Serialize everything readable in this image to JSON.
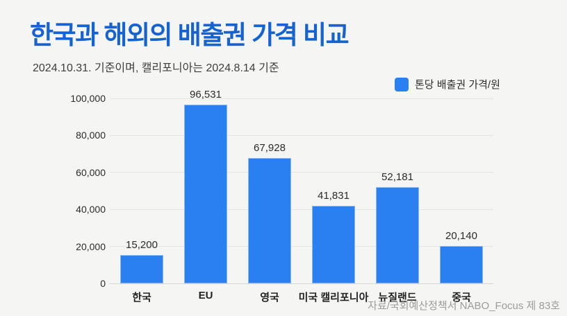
{
  "header": {
    "title": "한국과 해외의 배출권 가격 비교",
    "subtitle": "2024.10.31. 기준이며, 캘리포니아는 2024.8.14 기준"
  },
  "legend": {
    "label": "톤당 배출권 가격/원",
    "swatch_color": "#2a80f0",
    "position": "top-right"
  },
  "chart_data": {
    "type": "bar",
    "title": "한국과 해외의 배출권 가격 비교",
    "series_name": "톤당 배출권 가격/원",
    "categories": [
      "한국",
      "EU",
      "영국",
      "미국 캘리포니아",
      "뉴질랜드",
      "중국"
    ],
    "values": [
      15200,
      96531,
      67928,
      41831,
      52181,
      20140
    ],
    "value_labels": [
      "15,200",
      "96,531",
      "67,928",
      "41,831",
      "52,181",
      "20,140"
    ],
    "xlabel": "",
    "ylabel": "톤당 배출권 가격/원",
    "ylim": [
      0,
      100000
    ],
    "yticks": [
      0,
      20000,
      40000,
      60000,
      80000,
      100000
    ],
    "ytick_labels": [
      "0",
      "20,000",
      "40,000",
      "60,000",
      "80,000",
      "100,000"
    ],
    "grid": "horizontal",
    "legend_position": "top-right",
    "bar_color": "#2a80f0"
  },
  "footer": {
    "source": "자료/국회예산정책서 NABO_Focus 제 83호"
  },
  "colors": {
    "background": "#f5f5f3",
    "title": "#1563d2",
    "bar": "#2a80f0",
    "grid": "#e4e4e1",
    "zero_line": "#d4d4d1",
    "axis_text": "#2a2a2a",
    "source_text": "#9c9c9c"
  }
}
